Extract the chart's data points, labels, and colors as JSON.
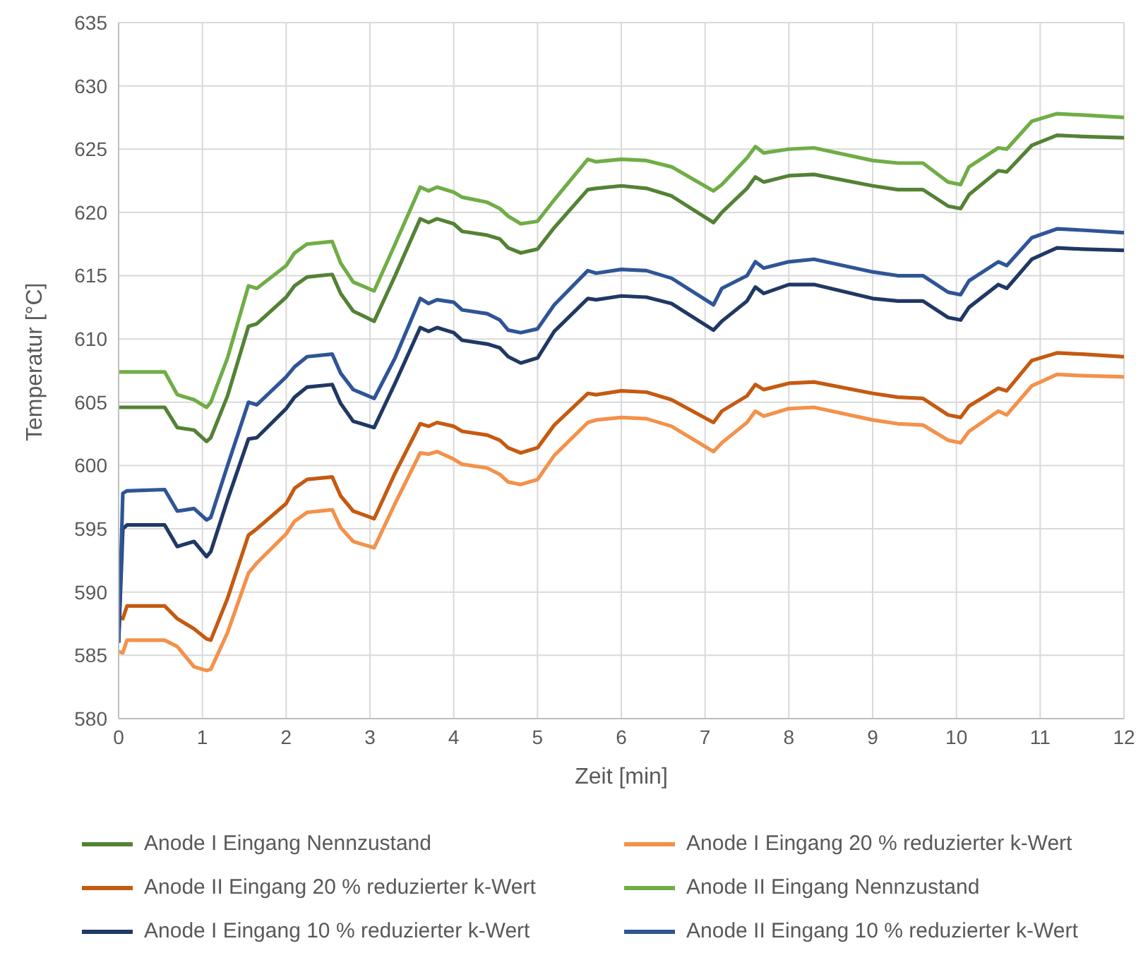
{
  "chart_data": {
    "type": "line",
    "xlabel": "Zeit [min]",
    "ylabel": "Temperatur [°C]",
    "x": [
      0,
      0.05,
      0.1,
      0.55,
      0.7,
      0.9,
      1.05,
      1.1,
      1.3,
      1.55,
      1.65,
      2.0,
      2.1,
      2.25,
      2.55,
      2.65,
      2.8,
      3.05,
      3.3,
      3.6,
      3.7,
      3.8,
      4.0,
      4.1,
      4.4,
      4.55,
      4.65,
      4.8,
      5.0,
      5.2,
      5.6,
      5.7,
      6.0,
      6.3,
      6.6,
      7.1,
      7.2,
      7.5,
      7.6,
      7.7,
      8.0,
      8.3,
      9.0,
      9.3,
      9.6,
      9.9,
      10.05,
      10.15,
      10.5,
      10.6,
      10.9,
      11.2,
      11.5,
      12
    ],
    "series": [
      {
        "name": "Anode I Eingang Nennzustand",
        "color": "#548235",
        "values": [
          604.6,
          604.6,
          604.6,
          604.6,
          603,
          602.8,
          601.9,
          602.2,
          605.5,
          611,
          611.2,
          613.3,
          614.2,
          614.9,
          615.1,
          613.6,
          612.2,
          611.4,
          615,
          619.5,
          619.2,
          619.5,
          619.1,
          618.5,
          618.2,
          617.9,
          617.2,
          616.8,
          617.1,
          618.8,
          621.8,
          621.9,
          622.1,
          621.9,
          621.3,
          619.2,
          620,
          621.9,
          622.8,
          622.4,
          622.9,
          623,
          622.1,
          621.8,
          621.8,
          620.5,
          620.3,
          621.4,
          623.3,
          623.2,
          625.3,
          626.1,
          626,
          625.9
        ]
      },
      {
        "name": "Anode I Eingang 20 % reduzierter k-Wert",
        "color": "#f4914a",
        "values": [
          585.3,
          585.2,
          586.2,
          586.2,
          585.7,
          584.1,
          583.8,
          583.9,
          586.8,
          591.5,
          592.3,
          594.6,
          595.6,
          596.3,
          596.5,
          595.1,
          594,
          593.5,
          597,
          601,
          600.9,
          601.1,
          600.5,
          600.1,
          599.8,
          599.3,
          598.7,
          598.5,
          598.9,
          600.8,
          603.4,
          603.6,
          603.8,
          603.7,
          603.1,
          601.1,
          601.8,
          603.4,
          604.3,
          603.9,
          604.5,
          604.6,
          603.6,
          603.3,
          603.2,
          602,
          601.8,
          602.7,
          604.3,
          604,
          606.3,
          607.2,
          607.1,
          607
        ]
      },
      {
        "name": "Anode II Eingang 20 % reduzierter k-Wert",
        "color": "#c55a11",
        "values": [
          588,
          587.9,
          588.9,
          588.9,
          587.9,
          587.1,
          586.3,
          586.2,
          589.5,
          594.5,
          595,
          597,
          598.2,
          598.9,
          599.1,
          597.6,
          596.4,
          595.8,
          599.4,
          603.3,
          603.1,
          603.4,
          603.1,
          602.7,
          602.4,
          602,
          601.4,
          601,
          601.4,
          603.2,
          605.7,
          605.6,
          605.9,
          605.8,
          605.2,
          603.4,
          604.3,
          605.5,
          606.4,
          606,
          606.5,
          606.6,
          605.7,
          605.4,
          605.3,
          604,
          603.8,
          604.7,
          606.1,
          605.9,
          608.3,
          608.9,
          608.8,
          608.6
        ]
      },
      {
        "name": "Anode II Eingang Nennzustand",
        "color": "#70ad47",
        "values": [
          607.4,
          607.4,
          607.4,
          607.4,
          605.6,
          605.2,
          604.6,
          605,
          608.5,
          614.2,
          614,
          615.8,
          616.8,
          617.5,
          617.7,
          616,
          614.5,
          613.8,
          617.5,
          622,
          621.7,
          622,
          621.6,
          621.2,
          620.8,
          620.3,
          619.7,
          619.1,
          619.3,
          621,
          624.2,
          624,
          624.2,
          624.1,
          623.6,
          621.7,
          622.2,
          624.3,
          625.2,
          624.7,
          625,
          625.1,
          624.1,
          623.9,
          623.9,
          622.4,
          622.2,
          623.6,
          625.1,
          625,
          627.2,
          627.8,
          627.7,
          627.5
        ]
      },
      {
        "name": "Anode I Eingang 10 % reduzierter k-Wert",
        "color": "#203864",
        "values": [
          586,
          595,
          595.3,
          595.3,
          593.6,
          594,
          592.8,
          593.2,
          597.3,
          602.1,
          602.2,
          604.5,
          605.4,
          606.2,
          606.4,
          604.9,
          603.5,
          603,
          606.5,
          610.9,
          610.6,
          610.9,
          610.5,
          609.9,
          609.6,
          609.3,
          608.6,
          608.1,
          608.5,
          610.6,
          613.2,
          613.1,
          613.4,
          613.3,
          612.8,
          610.7,
          611.4,
          613,
          614.1,
          613.6,
          614.3,
          614.3,
          613.2,
          613,
          613,
          611.7,
          611.5,
          612.5,
          614.3,
          614,
          616.3,
          617.2,
          617.1,
          617
        ]
      },
      {
        "name": "Anode II Eingang 10 % reduzierter k-Wert",
        "color": "#2f5597",
        "values": [
          586,
          597.8,
          598,
          598.1,
          596.4,
          596.6,
          595.7,
          595.9,
          600,
          605,
          604.8,
          607,
          607.8,
          608.6,
          608.8,
          607.3,
          606,
          605.3,
          608.5,
          613.2,
          612.8,
          613.1,
          612.9,
          612.3,
          612,
          611.5,
          610.7,
          610.5,
          610.8,
          612.7,
          615.4,
          615.2,
          615.5,
          615.4,
          614.8,
          612.7,
          614,
          615,
          616.1,
          615.6,
          616.1,
          616.3,
          615.3,
          615,
          615,
          613.7,
          613.5,
          614.6,
          616.1,
          615.8,
          618,
          618.7,
          618.6,
          618.4
        ]
      }
    ],
    "xlim": [
      0,
      12
    ],
    "xticks": [
      0,
      1,
      2,
      3,
      4,
      5,
      6,
      7,
      8,
      9,
      10,
      11,
      12
    ],
    "ylim": [
      580,
      635
    ],
    "yticks": [
      580,
      585,
      590,
      595,
      600,
      605,
      610,
      615,
      620,
      625,
      630,
      635
    ],
    "grid": true,
    "legend": "bottom",
    "marker": "none",
    "line_style": "solid"
  }
}
